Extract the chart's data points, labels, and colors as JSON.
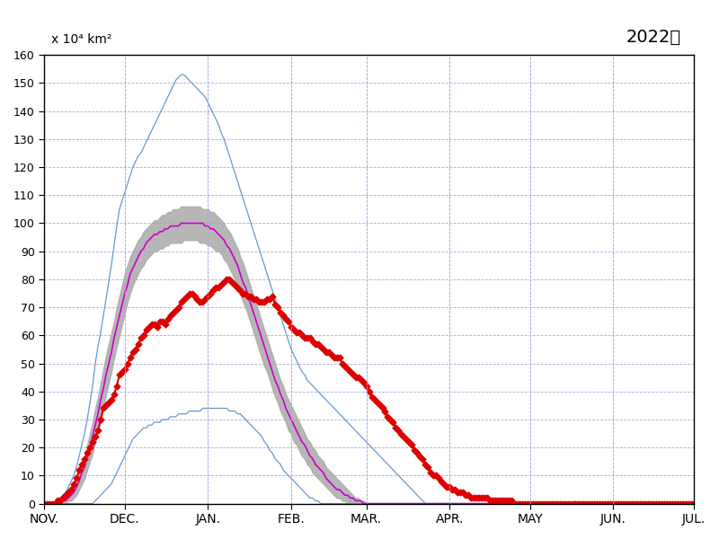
{
  "title": "2022年",
  "ylabel": "x 10⁴ km²",
  "ylim": [
    0,
    160
  ],
  "yticks": [
    0,
    10,
    20,
    30,
    40,
    50,
    60,
    70,
    80,
    90,
    100,
    110,
    120,
    130,
    140,
    150,
    160
  ],
  "month_labels": [
    "NOV.",
    "DEC.",
    "JAN.",
    "FEB.",
    "MAR.",
    "APR.",
    "MAY",
    "JUN.",
    "JUL."
  ],
  "n_points": 243,
  "background_color": "#ffffff",
  "grid_color": "#aaaadd",
  "band_color": "#aaaaaa",
  "mean_color": "#cc00cc",
  "max_color": "#6699cc",
  "min_color": "#6699cc",
  "current_color": "#dd0000",
  "upper_max": [
    0,
    0,
    0,
    0,
    0,
    1,
    2,
    3,
    4,
    6,
    8,
    10,
    13,
    17,
    21,
    25,
    30,
    36,
    42,
    50,
    56,
    61,
    67,
    73,
    79,
    85,
    92,
    99,
    105,
    108,
    111,
    114,
    117,
    120,
    122,
    124,
    125,
    127,
    129,
    131,
    133,
    135,
    137,
    139,
    141,
    143,
    145,
    147,
    149,
    151,
    152,
    153,
    153,
    152,
    151,
    150,
    149,
    148,
    147,
    146,
    145,
    143,
    141,
    139,
    137,
    135,
    132,
    130,
    127,
    124,
    121,
    118,
    115,
    112,
    109,
    106,
    103,
    100,
    97,
    94,
    91,
    88,
    85,
    82,
    79,
    76,
    73,
    70,
    67,
    64,
    61,
    58,
    55,
    53,
    51,
    49,
    47,
    46,
    44,
    43,
    42,
    41,
    40,
    39,
    38,
    37,
    36,
    35,
    34,
    33,
    32,
    31,
    30,
    29,
    28,
    27,
    26,
    25,
    24,
    23,
    22,
    21,
    20,
    19,
    18,
    17,
    16,
    15,
    14,
    13,
    12,
    11,
    10,
    9,
    8,
    7,
    6,
    5,
    4,
    3,
    2,
    1,
    0,
    0,
    0,
    0,
    0,
    0,
    0,
    0,
    0,
    0,
    0,
    0,
    0,
    0,
    0,
    0,
    0,
    0,
    0,
    0,
    0,
    0,
    0,
    0,
    0,
    0,
    0,
    0,
    0,
    0,
    0,
    0,
    0,
    0,
    0,
    0,
    0,
    0,
    0,
    0,
    0,
    0,
    0,
    0,
    0,
    0,
    0,
    0,
    0,
    0,
    0,
    0,
    0,
    0,
    0,
    0,
    0,
    0,
    0,
    0,
    0,
    0,
    0,
    0,
    0,
    0,
    0,
    0,
    0,
    0,
    0,
    0,
    0,
    0,
    0,
    0,
    0,
    0,
    0,
    0,
    0,
    0,
    0,
    0,
    0,
    0,
    0,
    0,
    0,
    0,
    0,
    0,
    0,
    0,
    0,
    0,
    0,
    0,
    0,
    0,
    0
  ],
  "lower_min": [
    0,
    0,
    0,
    0,
    0,
    0,
    0,
    0,
    0,
    0,
    0,
    0,
    0,
    0,
    0,
    0,
    0,
    0,
    0,
    1,
    2,
    3,
    4,
    5,
    6,
    7,
    9,
    11,
    13,
    15,
    17,
    19,
    21,
    23,
    24,
    25,
    26,
    27,
    27,
    28,
    28,
    29,
    29,
    29,
    30,
    30,
    30,
    31,
    31,
    31,
    32,
    32,
    32,
    32,
    33,
    33,
    33,
    33,
    33,
    34,
    34,
    34,
    34,
    34,
    34,
    34,
    34,
    34,
    34,
    33,
    33,
    33,
    32,
    32,
    31,
    30,
    29,
    28,
    27,
    26,
    25,
    24,
    22,
    21,
    19,
    18,
    16,
    15,
    14,
    12,
    11,
    10,
    9,
    8,
    7,
    6,
    5,
    4,
    3,
    2,
    2,
    1,
    1,
    0,
    0,
    0,
    0,
    0,
    0,
    0,
    0,
    0,
    0,
    0,
    0,
    0,
    0,
    0,
    0,
    0,
    0,
    0,
    0,
    0,
    0,
    0,
    0,
    0,
    0,
    0,
    0,
    0,
    0,
    0,
    0,
    0,
    0,
    0,
    0,
    0,
    0,
    0,
    0,
    0,
    0,
    0,
    0,
    0,
    0,
    0,
    0,
    0,
    0,
    0,
    0,
    0,
    0,
    0,
    0,
    0,
    0,
    0,
    0,
    0,
    0,
    0,
    0,
    0,
    0,
    0,
    0,
    0,
    0,
    0,
    0,
    0,
    0,
    0,
    0,
    0,
    0,
    0,
    0,
    0,
    0,
    0,
    0,
    0,
    0,
    0,
    0,
    0,
    0,
    0,
    0,
    0,
    0,
    0,
    0,
    0,
    0,
    0,
    0,
    0,
    0,
    0,
    0,
    0,
    0,
    0,
    0,
    0,
    0,
    0,
    0,
    0,
    0,
    0,
    0,
    0,
    0,
    0,
    0,
    0,
    0,
    0,
    0,
    0,
    0,
    0,
    0,
    0,
    0,
    0,
    0,
    0,
    0,
    0,
    0,
    0,
    0,
    0,
    0
  ],
  "mean_upper": [
    0,
    0,
    0,
    0,
    0,
    0,
    1,
    1,
    2,
    3,
    4,
    6,
    8,
    11,
    14,
    17,
    21,
    25,
    29,
    34,
    38,
    43,
    48,
    53,
    57,
    61,
    65,
    70,
    74,
    78,
    82,
    85,
    88,
    90,
    92,
    94,
    95,
    97,
    98,
    99,
    100,
    101,
    101,
    102,
    103,
    103,
    104,
    104,
    105,
    105,
    105,
    106,
    106,
    106,
    106,
    106,
    106,
    106,
    106,
    105,
    105,
    105,
    104,
    104,
    103,
    102,
    101,
    100,
    98,
    97,
    95,
    93,
    91,
    88,
    86,
    83,
    80,
    77,
    74,
    71,
    68,
    65,
    62,
    59,
    56,
    53,
    50,
    47,
    44,
    42,
    39,
    37,
    35,
    33,
    31,
    29,
    27,
    25,
    23,
    22,
    20,
    19,
    17,
    16,
    15,
    13,
    12,
    11,
    10,
    9,
    8,
    7,
    6,
    5,
    4,
    3,
    2,
    2,
    1,
    1,
    0,
    0,
    0,
    0,
    0,
    0,
    0,
    0,
    0,
    0,
    0,
    0,
    0,
    0,
    0,
    0,
    0,
    0,
    0,
    0,
    0,
    0,
    0,
    0,
    0,
    0,
    0,
    0,
    0,
    0,
    0,
    0,
    0,
    0,
    0,
    0,
    0,
    0,
    0,
    0,
    0,
    0,
    0,
    0,
    0,
    0,
    0,
    0,
    0,
    0,
    0,
    0,
    0,
    0,
    0,
    0,
    0,
    0,
    0,
    0,
    0,
    0,
    0,
    0,
    0,
    0,
    0,
    0,
    0,
    0,
    0,
    0,
    0,
    0,
    0,
    0,
    0,
    0,
    0,
    0,
    0,
    0,
    0,
    0,
    0,
    0,
    0,
    0,
    0,
    0,
    0,
    0,
    0,
    0,
    0,
    0,
    0,
    0,
    0,
    0,
    0,
    0,
    0,
    0,
    0,
    0,
    0,
    0,
    0,
    0,
    0,
    0,
    0,
    0,
    0,
    0,
    0,
    0,
    0,
    0,
    0,
    0,
    0
  ],
  "mean_lower": [
    0,
    0,
    0,
    0,
    0,
    0,
    0,
    0,
    0,
    1,
    1,
    2,
    3,
    5,
    7,
    9,
    12,
    15,
    18,
    22,
    26,
    30,
    34,
    39,
    43,
    47,
    52,
    56,
    60,
    64,
    68,
    72,
    75,
    78,
    80,
    82,
    84,
    85,
    87,
    88,
    89,
    90,
    90,
    91,
    91,
    92,
    92,
    93,
    93,
    93,
    93,
    93,
    94,
    94,
    94,
    94,
    94,
    94,
    93,
    93,
    93,
    92,
    92,
    91,
    90,
    90,
    89,
    87,
    86,
    84,
    82,
    80,
    78,
    75,
    72,
    70,
    67,
    64,
    61,
    58,
    55,
    52,
    49,
    47,
    44,
    41,
    38,
    36,
    33,
    31,
    29,
    26,
    25,
    22,
    21,
    19,
    17,
    16,
    14,
    13,
    11,
    10,
    9,
    8,
    7,
    6,
    5,
    4,
    3,
    2,
    2,
    1,
    1,
    0,
    0,
    0,
    0,
    0,
    0,
    0,
    0,
    0,
    0,
    0,
    0,
    0,
    0,
    0,
    0,
    0,
    0,
    0,
    0,
    0,
    0,
    0,
    0,
    0,
    0,
    0,
    0,
    0,
    0,
    0,
    0,
    0,
    0,
    0,
    0,
    0,
    0,
    0,
    0,
    0,
    0,
    0,
    0,
    0,
    0,
    0,
    0,
    0,
    0,
    0,
    0,
    0,
    0,
    0,
    0,
    0,
    0,
    0,
    0,
    0,
    0,
    0,
    0,
    0,
    0,
    0,
    0,
    0,
    0,
    0,
    0,
    0,
    0,
    0,
    0,
    0,
    0,
    0,
    0,
    0,
    0,
    0,
    0,
    0,
    0,
    0,
    0,
    0,
    0,
    0,
    0,
    0,
    0,
    0,
    0,
    0,
    0,
    0,
    0,
    0,
    0,
    0,
    0,
    0,
    0,
    0,
    0,
    0,
    0,
    0,
    0,
    0,
    0,
    0,
    0,
    0,
    0,
    0,
    0,
    0,
    0,
    0,
    0,
    0,
    0,
    0,
    0,
    0,
    0
  ],
  "mean_line": [
    0,
    0,
    0,
    0,
    0,
    0,
    0,
    1,
    1,
    2,
    3,
    4,
    6,
    8,
    11,
    13,
    17,
    20,
    24,
    28,
    32,
    37,
    41,
    46,
    50,
    54,
    59,
    63,
    67,
    71,
    75,
    78,
    82,
    84,
    86,
    88,
    90,
    91,
    93,
    94,
    95,
    96,
    96,
    97,
    97,
    98,
    98,
    99,
    99,
    99,
    99,
    100,
    100,
    100,
    100,
    100,
    100,
    100,
    100,
    100,
    99,
    99,
    98,
    98,
    97,
    96,
    95,
    94,
    92,
    91,
    89,
    87,
    85,
    82,
    79,
    77,
    74,
    71,
    68,
    65,
    62,
    59,
    56,
    53,
    50,
    47,
    44,
    42,
    39,
    37,
    34,
    32,
    30,
    28,
    26,
    24,
    22,
    21,
    19,
    17,
    16,
    14,
    13,
    12,
    11,
    9,
    8,
    7,
    6,
    5,
    5,
    4,
    3,
    3,
    2,
    2,
    1,
    1,
    1,
    0,
    0,
    0,
    0,
    0,
    0,
    0,
    0,
    0,
    0,
    0,
    0,
    0,
    0,
    0,
    0,
    0,
    0,
    0,
    0,
    0,
    0,
    0,
    0,
    0,
    0,
    0,
    0,
    0,
    0,
    0,
    0,
    0,
    0,
    0,
    0,
    0,
    0,
    0,
    0,
    0,
    0,
    0,
    0,
    0,
    0,
    0,
    0,
    0,
    0,
    0,
    0,
    0,
    0,
    0,
    0,
    0,
    0,
    0,
    0,
    0,
    0,
    0,
    0,
    0,
    0,
    0,
    0,
    0,
    0,
    0,
    0,
    0,
    0,
    0,
    0,
    0,
    0,
    0,
    0,
    0,
    0,
    0,
    0,
    0,
    0,
    0,
    0,
    0,
    0,
    0,
    0,
    0,
    0,
    0,
    0,
    0,
    0,
    0,
    0,
    0,
    0,
    0,
    0,
    0,
    0,
    0,
    0,
    0,
    0,
    0,
    0,
    0,
    0,
    0,
    0,
    0,
    0,
    0,
    0,
    0,
    0,
    0,
    0
  ],
  "current": [
    0,
    0,
    0,
    0,
    0,
    1,
    1,
    2,
    3,
    4,
    5,
    7,
    9,
    12,
    14,
    16,
    18,
    20,
    22,
    24,
    26,
    30,
    34,
    35,
    36,
    37,
    39,
    42,
    46,
    47,
    48,
    50,
    52,
    54,
    55,
    57,
    59,
    60,
    62,
    63,
    64,
    64,
    63,
    65,
    65,
    64,
    66,
    67,
    68,
    69,
    70,
    72,
    73,
    74,
    75,
    75,
    74,
    73,
    72,
    72,
    73,
    74,
    75,
    76,
    77,
    77,
    78,
    79,
    80,
    80,
    79,
    78,
    77,
    76,
    75,
    75,
    74,
    74,
    73,
    73,
    72,
    72,
    72,
    73,
    73,
    74,
    71,
    70,
    68,
    67,
    66,
    65,
    63,
    62,
    61,
    61,
    60,
    59,
    59,
    59,
    58,
    57,
    57,
    56,
    55,
    54,
    54,
    53,
    52,
    52,
    52,
    50,
    49,
    48,
    47,
    46,
    45,
    45,
    44,
    43,
    42,
    40,
    38,
    37,
    36,
    35,
    34,
    33,
    31,
    30,
    29,
    27,
    26,
    25,
    24,
    23,
    22,
    21,
    19,
    18,
    17,
    16,
    14,
    13,
    11,
    10,
    10,
    9,
    8,
    7,
    6,
    6,
    5,
    5,
    4,
    4,
    4,
    3,
    3,
    2,
    2,
    2,
    2,
    2,
    2,
    2,
    1,
    1,
    1,
    1,
    1,
    1,
    1,
    1,
    1,
    0,
    0,
    0,
    0,
    0,
    0,
    0,
    0,
    0,
    0,
    0,
    0,
    0,
    0,
    0,
    0,
    0,
    0,
    0,
    0,
    0,
    0,
    0,
    0,
    0,
    0,
    0,
    0,
    0,
    0,
    0,
    0,
    0,
    0,
    0,
    0,
    0,
    0,
    0,
    0,
    0,
    0,
    0,
    0,
    0,
    0,
    0,
    0,
    0,
    0,
    0,
    0,
    0,
    0,
    0,
    0,
    0,
    0,
    0,
    0,
    0,
    0,
    0,
    0,
    0,
    0,
    0,
    0
  ]
}
